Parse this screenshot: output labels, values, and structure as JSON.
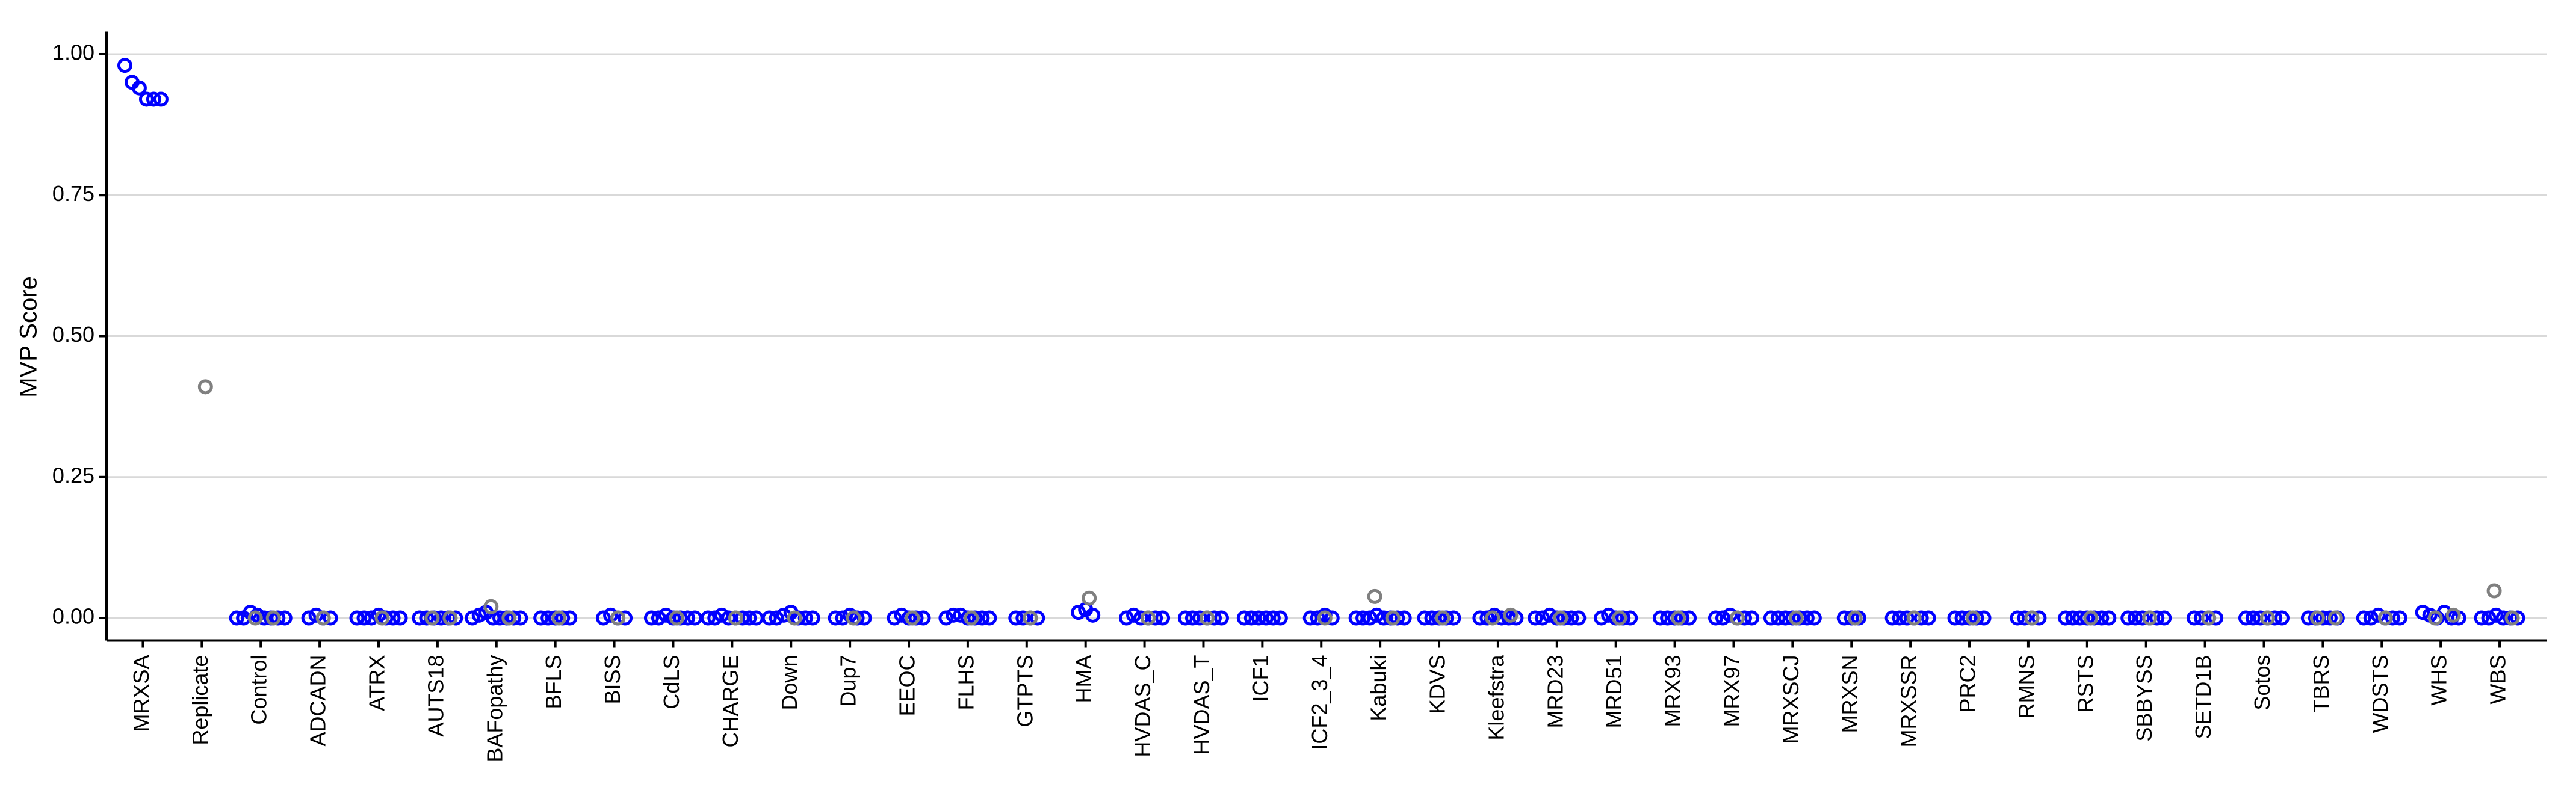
{
  "chart_data": {
    "type": "strip",
    "y_label": "MVP Score",
    "categories": [
      "MRXSA",
      "Replicate",
      "Control",
      "ADCADN",
      "ATRX",
      "AUTS18",
      "BAFopathy",
      "BFLS",
      "BISS",
      "CdLS",
      "CHARGE",
      "Down",
      "Dup7",
      "EEOC",
      "FLHS",
      "GTPTS",
      "HMA",
      "HVDAS_C",
      "HVDAS_T",
      "ICF1",
      "ICF2_3_4",
      "Kabuki",
      "KDVS",
      "Kleefstra",
      "MRD23",
      "MRD51",
      "MRX93",
      "MRX97",
      "MRXSCJ",
      "MRXSN",
      "MRXSSR",
      "PRC2",
      "RMNS",
      "RSTS",
      "SBBYSS",
      "SETD1B",
      "Sotos",
      "TBRS",
      "WDSTS",
      "WHS",
      "WBS"
    ],
    "series": [
      {
        "color": "#0000ff",
        "values": [
          [
            0.98,
            0.95,
            0.94,
            0.92,
            0.92,
            0.92
          ],
          [],
          [
            0,
            0,
            0.01,
            0.005,
            0,
            0,
            0,
            0
          ],
          [
            0,
            0.005,
            0,
            0
          ],
          [
            0,
            0,
            0,
            0.005,
            0,
            0,
            0
          ],
          [
            0,
            0,
            0,
            0,
            0,
            0
          ],
          [
            0,
            0.005,
            0.01,
            0,
            0,
            0,
            0,
            0
          ],
          [
            0,
            0,
            0,
            0,
            0
          ],
          [
            0,
            0.005,
            0,
            0
          ],
          [
            0,
            0,
            0.005,
            0,
            0,
            0,
            0
          ],
          [
            0,
            0,
            0.005,
            0,
            0,
            0,
            0,
            0
          ],
          [
            0,
            0,
            0.005,
            0.01,
            0,
            0,
            0
          ],
          [
            0,
            0,
            0.005,
            0,
            0
          ],
          [
            0,
            0.005,
            0,
            0,
            0
          ],
          [
            0,
            0.005,
            0.005,
            0,
            0,
            0,
            0
          ],
          [
            0,
            0,
            0,
            0
          ],
          [
            0.01,
            0.015,
            0.005
          ],
          [
            0,
            0.005,
            0,
            0,
            0,
            0
          ],
          [
            0,
            0,
            0,
            0,
            0,
            0
          ],
          [
            0,
            0,
            0,
            0,
            0,
            0
          ],
          [
            0,
            0,
            0.005,
            0
          ],
          [
            0,
            0,
            0,
            0.005,
            0,
            0,
            0,
            0
          ],
          [
            0,
            0,
            0,
            0,
            0
          ],
          [
            0,
            0,
            0.005,
            0,
            0,
            0
          ],
          [
            0,
            0,
            0.005,
            0,
            0,
            0,
            0
          ],
          [
            0,
            0.005,
            0,
            0,
            0
          ],
          [
            0,
            0,
            0,
            0,
            0
          ],
          [
            0,
            0,
            0.005,
            0,
            0,
            0
          ],
          [
            0,
            0,
            0,
            0,
            0,
            0,
            0
          ],
          [
            0,
            0,
            0
          ],
          [
            0,
            0,
            0,
            0,
            0,
            0
          ],
          [
            0,
            0,
            0,
            0,
            0
          ],
          [
            0,
            0,
            0,
            0
          ],
          [
            0,
            0,
            0,
            0,
            0,
            0,
            0
          ],
          [
            0,
            0,
            0,
            0,
            0,
            0
          ],
          [
            0,
            0,
            0,
            0
          ],
          [
            0,
            0,
            0,
            0,
            0,
            0
          ],
          [
            0,
            0,
            0,
            0,
            0
          ],
          [
            0,
            0,
            0.005,
            0,
            0,
            0
          ],
          [
            0.01,
            0.005,
            0,
            0.01,
            0,
            0
          ],
          [
            0,
            0,
            0.005,
            0,
            0,
            0
          ]
        ]
      },
      {
        "color": "#808080",
        "values": [
          [],
          [
            0.41
          ],
          [
            0,
            0
          ],
          [
            0
          ],
          [
            0
          ],
          [
            0,
            0
          ],
          [
            0.02,
            0
          ],
          [
            0
          ],
          [
            0
          ],
          [
            0
          ],
          [
            0
          ],
          [
            0
          ],
          [
            0
          ],
          [
            0
          ],
          [
            0
          ],
          [
            0
          ],
          [
            0.035
          ],
          [
            0
          ],
          [
            0
          ],
          [],
          [
            0
          ],
          [
            0.038,
            0
          ],
          [
            0
          ],
          [
            0,
            0.005
          ],
          [
            0
          ],
          [
            0
          ],
          [
            0
          ],
          [
            0
          ],
          [
            0
          ],
          [
            0
          ],
          [
            0
          ],
          [
            0
          ],
          [
            0
          ],
          [
            0
          ],
          [
            0
          ],
          [
            0
          ],
          [
            0
          ],
          [
            0,
            0
          ],
          [
            0
          ],
          [
            0,
            0.005
          ],
          [
            0.048,
            0
          ]
        ]
      }
    ],
    "ylim": [
      -0.04,
      1.04
    ],
    "yticks": [
      {
        "value": 0,
        "label": "0.00"
      },
      {
        "value": 0.25,
        "label": "0.25"
      },
      {
        "value": 0.5,
        "label": "0.50"
      },
      {
        "value": 0.75,
        "label": "0.75"
      },
      {
        "value": 1,
        "label": "1.00"
      }
    ],
    "grid": true
  }
}
